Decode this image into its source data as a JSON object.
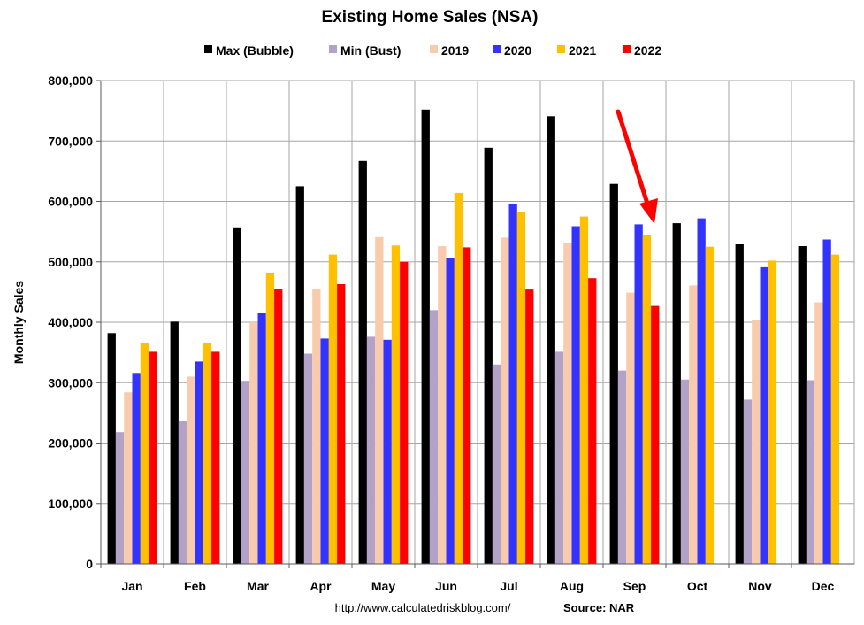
{
  "chart_data": {
    "type": "bar",
    "title": "Existing Home Sales (NSA)",
    "xlabel": "",
    "ylabel": "Monthly Sales",
    "ylim": [
      0,
      800000
    ],
    "yticks": [
      "0",
      "100,000",
      "200,000",
      "300,000",
      "400,000",
      "500,000",
      "600,000",
      "700,000",
      "800,000"
    ],
    "yticks_values": [
      0,
      100000,
      200000,
      300000,
      400000,
      500000,
      600000,
      700000,
      800000
    ],
    "grid": true,
    "legend_position": "top",
    "categories": [
      "Jan",
      "Feb",
      "Mar",
      "Apr",
      "May",
      "Jun",
      "Jul",
      "Aug",
      "Sep",
      "Oct",
      "Nov",
      "Dec"
    ],
    "series": [
      {
        "name": "Max (Bubble)",
        "color": "#000000",
        "values": [
          382000,
          401000,
          557000,
          625000,
          667000,
          752000,
          689000,
          741000,
          629000,
          564000,
          529000,
          526000
        ]
      },
      {
        "name": "Min (Bust)",
        "color": "#b3a2c7",
        "values": [
          218000,
          237000,
          303000,
          348000,
          376000,
          420000,
          330000,
          351000,
          320000,
          305000,
          272000,
          304000
        ]
      },
      {
        "name": "2019",
        "color": "#f8cbad",
        "values": [
          284000,
          310000,
          400000,
          455000,
          541000,
          526000,
          540000,
          531000,
          449000,
          461000,
          404000,
          433000
        ]
      },
      {
        "name": "2020",
        "color": "#3333ff",
        "values": [
          316000,
          335000,
          415000,
          373000,
          371000,
          506000,
          596000,
          559000,
          562000,
          572000,
          491000,
          537000
        ]
      },
      {
        "name": "2021",
        "color": "#ffc000",
        "values": [
          366000,
          366000,
          482000,
          512000,
          527000,
          614000,
          583000,
          575000,
          545000,
          525000,
          502000,
          512000
        ]
      },
      {
        "name": "2022",
        "color": "#ff0000",
        "values": [
          351000,
          351000,
          455000,
          463000,
          500000,
          524000,
          454000,
          473000,
          427000,
          null,
          null,
          null
        ]
      }
    ],
    "annotation": {
      "type": "arrow",
      "color": "#ff0000",
      "points_to": "Sep"
    }
  },
  "footer": {
    "url": "http://www.calculatedriskblog.com/",
    "source": "Source: NAR"
  }
}
